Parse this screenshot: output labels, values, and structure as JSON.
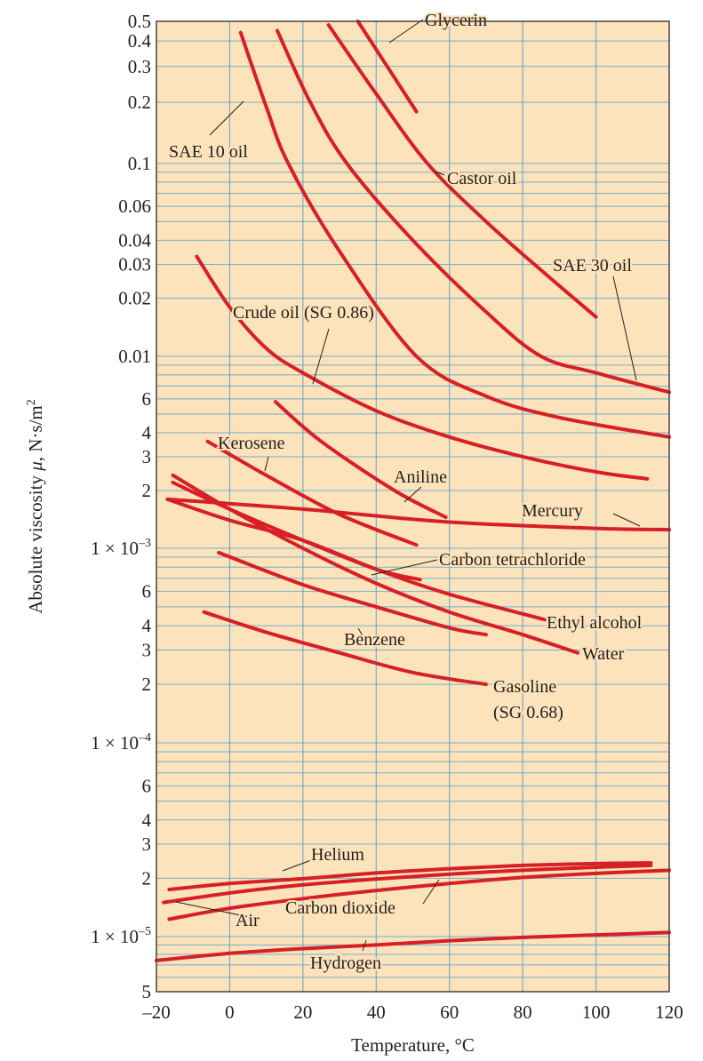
{
  "chart_data": {
    "type": "line",
    "title": "",
    "xlabel": "Temperature, °C",
    "ylabel": "Absolute viscosity μ, N·s/m²",
    "xlim": [
      -20,
      120
    ],
    "ylim": [
      5e-06,
      0.5
    ],
    "yscale": "log",
    "grid": true,
    "legend": "inline-labels",
    "colors": {
      "background": "#fde3bb",
      "grid": "#5ba4cf",
      "curve": "#d71f26",
      "frame": "#4a4040"
    },
    "x_ticks": [
      {
        "value": -20,
        "label": "–20"
      },
      {
        "value": 0,
        "label": "0"
      },
      {
        "value": 20,
        "label": "20"
      },
      {
        "value": 40,
        "label": "40"
      },
      {
        "value": 60,
        "label": "60"
      },
      {
        "value": 80,
        "label": "80"
      },
      {
        "value": 100,
        "label": "100"
      },
      {
        "value": 120,
        "label": "120"
      }
    ],
    "y_ticks": [
      {
        "value": 0.5,
        "label": "0.5"
      },
      {
        "value": 0.4,
        "label": "0.4"
      },
      {
        "value": 0.3,
        "label": "0.3"
      },
      {
        "value": 0.2,
        "label": "0.2"
      },
      {
        "value": 0.1,
        "label": "0.1"
      },
      {
        "value": 0.06,
        "label": "0.06"
      },
      {
        "value": 0.04,
        "label": "0.04"
      },
      {
        "value": 0.03,
        "label": "0.03"
      },
      {
        "value": 0.02,
        "label": "0.02"
      },
      {
        "value": 0.01,
        "label": "0.01"
      },
      {
        "value": 0.006,
        "label": "6"
      },
      {
        "value": 0.004,
        "label": "4"
      },
      {
        "value": 0.003,
        "label": "3"
      },
      {
        "value": 0.002,
        "label": "2"
      },
      {
        "value": 0.001,
        "label": "1 × 10",
        "exp": "–3"
      },
      {
        "value": 0.0006,
        "label": "6"
      },
      {
        "value": 0.0004,
        "label": "4"
      },
      {
        "value": 0.0003,
        "label": "3"
      },
      {
        "value": 0.0002,
        "label": "2"
      },
      {
        "value": 0.0001,
        "label": "1 × 10",
        "exp": "–4"
      },
      {
        "value": 6e-05,
        "label": "6"
      },
      {
        "value": 4e-05,
        "label": "4"
      },
      {
        "value": 3e-05,
        "label": "3"
      },
      {
        "value": 2e-05,
        "label": "2"
      },
      {
        "value": 1e-05,
        "label": "1 × 10",
        "exp": "–5"
      },
      {
        "value": 5e-06,
        "label": "5"
      }
    ],
    "y_gridlines": [
      0.4,
      0.3,
      0.2,
      0.1,
      0.09,
      0.08,
      0.07,
      0.06,
      0.05,
      0.04,
      0.03,
      0.02,
      0.01,
      0.009,
      0.008,
      0.007,
      0.006,
      0.005,
      0.004,
      0.003,
      0.002,
      0.001,
      0.0009,
      0.0008,
      0.0007,
      0.0006,
      0.0005,
      0.0004,
      0.0003,
      0.0002,
      0.0001,
      9e-05,
      8e-05,
      7e-05,
      6e-05,
      5e-05,
      4e-05,
      3e-05,
      2e-05,
      1e-05,
      9e-06,
      8e-06,
      7e-06,
      6e-06
    ],
    "x_gridlines": [
      0,
      20,
      40,
      60,
      80,
      100
    ],
    "series": [
      {
        "name": "Glycerin",
        "points": [
          [
            35,
            0.5
          ],
          [
            43,
            0.3
          ],
          [
            51,
            0.18
          ]
        ]
      },
      {
        "name": "SAE 10 oil",
        "points": [
          [
            3,
            0.44
          ],
          [
            10,
            0.19
          ],
          [
            16,
            0.1
          ],
          [
            30,
            0.035
          ],
          [
            51,
            0.01
          ],
          [
            70,
            0.0062
          ],
          [
            90,
            0.0048
          ],
          [
            120,
            0.0038
          ]
        ]
      },
      {
        "name": "SAE 30 oil",
        "points": [
          [
            13,
            0.45
          ],
          [
            22,
            0.2
          ],
          [
            32,
            0.1
          ],
          [
            50,
            0.04
          ],
          [
            70,
            0.017
          ],
          [
            85,
            0.01
          ],
          [
            100,
            0.0082
          ],
          [
            120,
            0.0065
          ]
        ]
      },
      {
        "name": "Castor oil",
        "points": [
          [
            27,
            0.48
          ],
          [
            40,
            0.22
          ],
          [
            54,
            0.1
          ],
          [
            70,
            0.05
          ],
          [
            85,
            0.028
          ],
          [
            100,
            0.016
          ]
        ]
      },
      {
        "name": "Crude oil (SG 0.86)",
        "points": [
          [
            -9,
            0.033
          ],
          [
            0,
            0.018
          ],
          [
            10,
            0.011
          ],
          [
            20,
            0.0082
          ],
          [
            40,
            0.0052
          ],
          [
            60,
            0.0038
          ],
          [
            80,
            0.003
          ],
          [
            100,
            0.0025
          ],
          [
            114,
            0.0023
          ]
        ]
      },
      {
        "name": "Kerosene",
        "points": [
          [
            -6,
            0.0036
          ],
          [
            10,
            0.0024
          ],
          [
            30,
            0.0015
          ],
          [
            51,
            0.00104
          ]
        ]
      },
      {
        "name": "Aniline",
        "points": [
          [
            12.5,
            0.0058
          ],
          [
            25,
            0.0036
          ],
          [
            45,
            0.002
          ],
          [
            59,
            0.00145
          ]
        ]
      },
      {
        "name": "Mercury",
        "points": [
          [
            -17,
            0.0018
          ],
          [
            20,
            0.0016
          ],
          [
            60,
            0.00137
          ],
          [
            100,
            0.00127
          ],
          [
            120,
            0.00125
          ]
        ]
      },
      {
        "name": "Carbon tetrachloride",
        "points": [
          [
            -15.5,
            0.0022
          ],
          [
            0,
            0.0016
          ],
          [
            20,
            0.0011
          ],
          [
            40,
            0.00078
          ],
          [
            52,
            0.00069
          ]
        ]
      },
      {
        "name": "Water",
        "points": [
          [
            -15.5,
            0.0024
          ],
          [
            0,
            0.0016
          ],
          [
            20,
            0.001
          ],
          [
            40,
            0.00066
          ],
          [
            60,
            0.00047
          ],
          [
            80,
            0.00036
          ],
          [
            95,
            0.00029
          ]
        ]
      },
      {
        "name": "Ethyl alcohol",
        "points": [
          [
            -17,
            0.0018
          ],
          [
            0,
            0.0014
          ],
          [
            20,
            0.0011
          ],
          [
            40,
            0.00078
          ],
          [
            60,
            0.00058
          ],
          [
            86,
            0.00043
          ]
        ]
      },
      {
        "name": "Benzene",
        "points": [
          [
            -3,
            0.00095
          ],
          [
            20,
            0.00065
          ],
          [
            40,
            0.0005
          ],
          [
            60,
            0.00039
          ],
          [
            70,
            0.00036
          ]
        ]
      },
      {
        "name": "Gasoline (SG 0.68)",
        "points": [
          [
            -7,
            0.00047
          ],
          [
            10,
            0.00037
          ],
          [
            30,
            0.00029
          ],
          [
            50,
            0.00023
          ],
          [
            70,
            0.0002
          ]
        ]
      },
      {
        "name": "Helium",
        "points": [
          [
            -16.5,
            1.75e-05
          ],
          [
            0,
            1.88e-05
          ],
          [
            20,
            1.99e-05
          ],
          [
            40,
            2.13e-05
          ],
          [
            60,
            2.24e-05
          ],
          [
            80,
            2.33e-05
          ],
          [
            100,
            2.38e-05
          ],
          [
            115,
            2.4e-05
          ]
        ]
      },
      {
        "name": "Air",
        "points": [
          [
            -18,
            1.5e-05
          ],
          [
            0,
            1.68e-05
          ],
          [
            20,
            1.85e-05
          ],
          [
            40,
            1.98e-05
          ],
          [
            60,
            2.1e-05
          ],
          [
            80,
            2.2e-05
          ],
          [
            100,
            2.28e-05
          ],
          [
            115,
            2.33e-05
          ]
        ]
      },
      {
        "name": "Carbon dioxide",
        "points": [
          [
            -16.5,
            1.23e-05
          ],
          [
            0,
            1.4e-05
          ],
          [
            20,
            1.57e-05
          ],
          [
            40,
            1.73e-05
          ],
          [
            60,
            1.88e-05
          ],
          [
            80,
            2.02e-05
          ],
          [
            100,
            2.12e-05
          ],
          [
            120,
            2.2e-05
          ]
        ]
      },
      {
        "name": "Hydrogen",
        "points": [
          [
            -20,
            7.4e-06
          ],
          [
            0,
            8.1e-06
          ],
          [
            20,
            8.6e-06
          ],
          [
            40,
            9e-06
          ],
          [
            60,
            9.5e-06
          ],
          [
            80,
            9.9e-06
          ],
          [
            100,
            1.02e-05
          ],
          [
            120,
            1.05e-05
          ]
        ]
      }
    ],
    "annotations": [
      {
        "text": "Glycerin",
        "series": "Glycerin"
      },
      {
        "text": "SAE 10 oil",
        "series": "SAE 10 oil"
      },
      {
        "text": "Castor oil",
        "series": "Castor oil"
      },
      {
        "text": "SAE 30 oil",
        "series": "SAE 30 oil"
      },
      {
        "text": "Crude oil (SG 0.86)",
        "series": "Crude oil (SG 0.86)"
      },
      {
        "text": "Kerosene",
        "series": "Kerosene"
      },
      {
        "text": "Aniline",
        "series": "Aniline"
      },
      {
        "text": "Mercury",
        "series": "Mercury"
      },
      {
        "text": "Carbon tetrachloride",
        "series": "Carbon tetrachloride"
      },
      {
        "text": "Ethyl alcohol",
        "series": "Ethyl alcohol"
      },
      {
        "text": "Benzene",
        "series": "Benzene"
      },
      {
        "text": "Water",
        "series": "Water"
      },
      {
        "text": "Gasoline",
        "series": "Gasoline (SG 0.68)"
      },
      {
        "text": "(SG 0.68)",
        "series": "Gasoline (SG 0.68)"
      },
      {
        "text": "Helium",
        "series": "Helium"
      },
      {
        "text": "Air",
        "series": "Air"
      },
      {
        "text": "Carbon dioxide",
        "series": "Carbon dioxide"
      },
      {
        "text": "Hydrogen",
        "series": "Hydrogen"
      }
    ]
  }
}
